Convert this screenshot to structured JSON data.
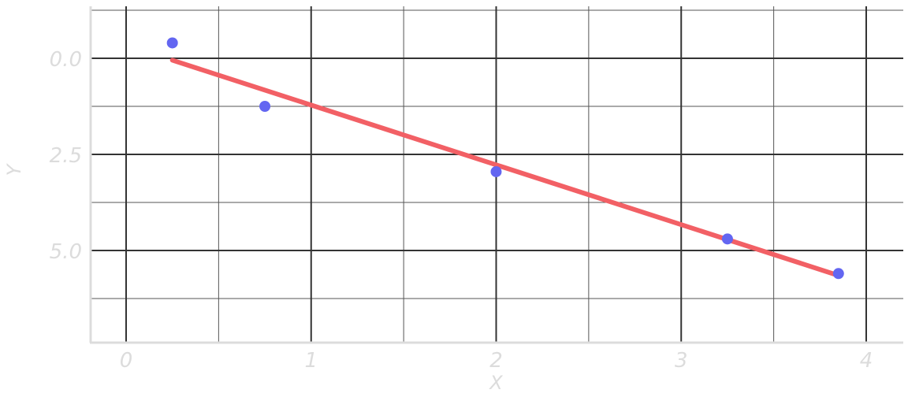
{
  "chart_data": {
    "type": "scatter",
    "title": "",
    "xlabel": "X",
    "ylabel": "Y",
    "xlim": [
      -0.2,
      4.2
    ],
    "ylim": [
      7.4,
      -1.4
    ],
    "y_inverted": true,
    "grid": true,
    "x_major_ticks": [
      0,
      1,
      2,
      3,
      4
    ],
    "x_tick_labels": [
      "0",
      "1",
      "2",
      "3",
      "4"
    ],
    "x_minor_ticks": [
      0.5,
      1.5,
      2.5,
      3.5
    ],
    "y_major_ticks": [
      0,
      2.5,
      5
    ],
    "y_tick_labels": [
      "0.0",
      "2.5",
      "5.0"
    ],
    "y_minor_ticks": [
      -1.25,
      1.25,
      3.75,
      6.25
    ],
    "series": [
      {
        "kind": "points",
        "x": [
          0.25,
          0.75,
          2.0,
          3.25,
          3.85
        ],
        "y": [
          -0.4,
          1.25,
          2.95,
          4.7,
          5.6
        ],
        "color": "#6366f1"
      },
      {
        "kind": "fit-line",
        "x": [
          0.25,
          3.85
        ],
        "y": [
          0.05,
          5.65
        ],
        "color": "#f26065"
      }
    ],
    "colors": {
      "major_grid": "#333333",
      "minor_grid": "#555555",
      "axis_line": "#dcdcdc",
      "label_text": "#dcdcdc"
    }
  }
}
